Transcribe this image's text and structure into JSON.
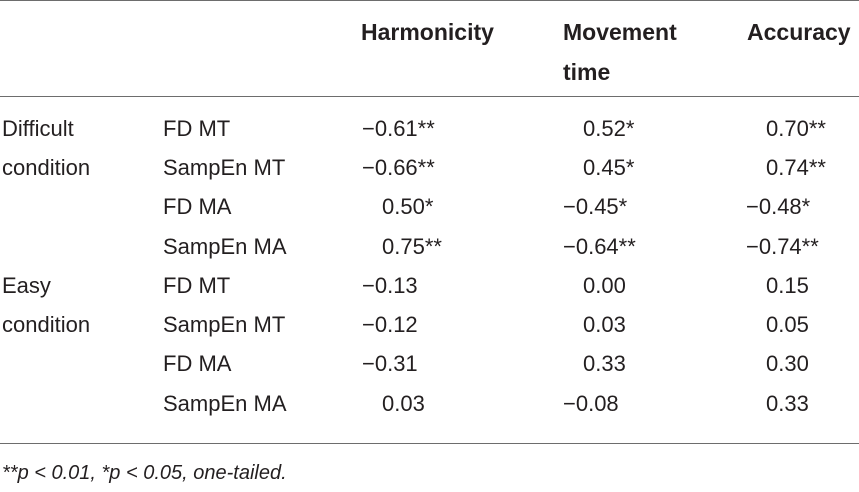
{
  "headers": {
    "harmonicity": "Harmonicity",
    "movement_time_line1": "Movement",
    "movement_time_line2": "time",
    "accuracy": "Accuracy"
  },
  "groups": [
    {
      "line1": "Difficult",
      "line2": "condition"
    },
    {
      "line1": "Easy",
      "line2": "condition"
    }
  ],
  "rows": [
    {
      "measure": "FD MT",
      "harmonicity": "−0.61**",
      "movement_time": "0.52*",
      "accuracy": "0.70**"
    },
    {
      "measure": "SampEn MT",
      "harmonicity": "−0.66**",
      "movement_time": "0.45*",
      "accuracy": "0.74**"
    },
    {
      "measure": "FD MA",
      "harmonicity": "0.50*",
      "movement_time": "−0.45*",
      "accuracy": "−0.48*"
    },
    {
      "measure": "SampEn MA",
      "harmonicity": "0.75**",
      "movement_time": "−0.64**",
      "accuracy": "−0.74**"
    },
    {
      "measure": "FD MT",
      "harmonicity": "−0.13",
      "movement_time": "0.00",
      "accuracy": "0.15"
    },
    {
      "measure": "SampEn MT",
      "harmonicity": "−0.12",
      "movement_time": "0.03",
      "accuracy": "0.05"
    },
    {
      "measure": "FD MA",
      "harmonicity": "−0.31",
      "movement_time": "0.33",
      "accuracy": "0.30"
    },
    {
      "measure": "SampEn MA",
      "harmonicity": "0.03",
      "movement_time": "−0.08",
      "accuracy": "0.33"
    }
  ],
  "footnote": "**p < 0.01,  *p < 0.05, one-tailed."
}
